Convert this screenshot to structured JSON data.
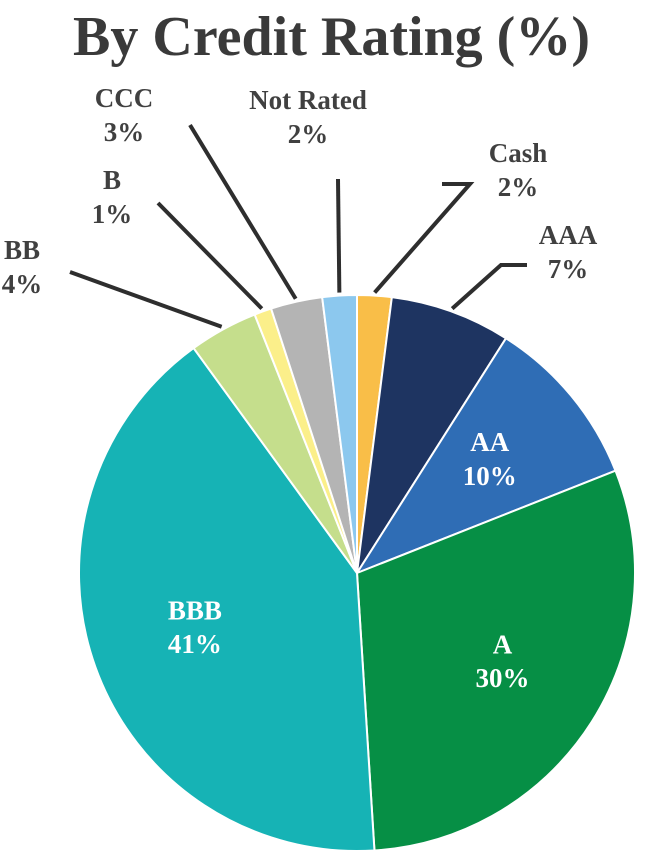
{
  "chart_data": {
    "type": "pie",
    "title": "By Credit Rating (%)",
    "slices": [
      {
        "label": "Cash",
        "value": 2,
        "value_label": "2%",
        "color": "#F9BE48",
        "label_placement": "outside",
        "text_color": "#404040"
      },
      {
        "label": "AAA",
        "value": 7,
        "value_label": "7%",
        "color": "#1E3461",
        "label_placement": "outside",
        "text_color": "#404040"
      },
      {
        "label": "AA",
        "value": 10,
        "value_label": "10%",
        "color": "#2F6DB5",
        "label_placement": "inside",
        "text_color": "#FFFFFF"
      },
      {
        "label": "A",
        "value": 30,
        "value_label": "30%",
        "color": "#068F45",
        "label_placement": "inside",
        "text_color": "#FFFFFF"
      },
      {
        "label": "BBB",
        "value": 41,
        "value_label": "41%",
        "color": "#16B3B5",
        "label_placement": "inside",
        "text_color": "#FFFFFF"
      },
      {
        "label": "BB",
        "value": 4,
        "value_label": "4%",
        "color": "#C5DE8C",
        "label_placement": "outside",
        "text_color": "#404040"
      },
      {
        "label": "B",
        "value": 1,
        "value_label": "1%",
        "color": "#FBEF8A",
        "label_placement": "outside",
        "text_color": "#404040"
      },
      {
        "label": "CCC",
        "value": 3,
        "value_label": "3%",
        "color": "#B4B4B4",
        "label_placement": "outside",
        "text_color": "#404040"
      },
      {
        "label": "Not Rated",
        "value": 2,
        "value_label": "2%",
        "color": "#8CC8EE",
        "label_placement": "outside",
        "text_color": "#404040"
      }
    ],
    "legend": "none",
    "data_labels": "category and percent"
  }
}
